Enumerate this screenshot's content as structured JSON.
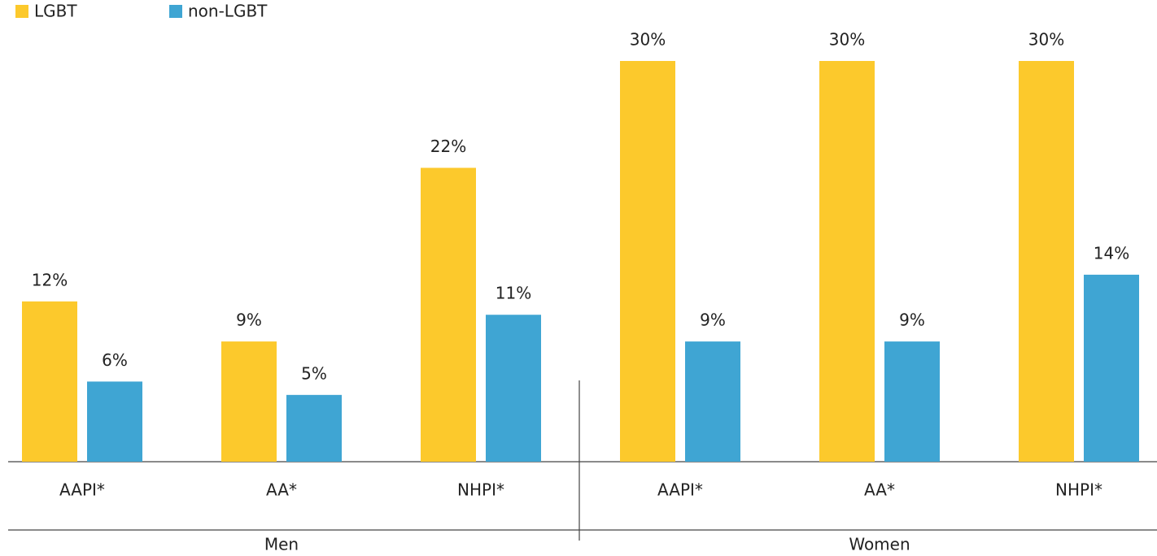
{
  "chart_data": {
    "type": "bar",
    "categories": [
      "AAPI*",
      "AA*",
      "NHPI*",
      "AAPI*",
      "AA*",
      "NHPI*"
    ],
    "groups": [
      "Men",
      "Women"
    ],
    "series": [
      {
        "name": "LGBT",
        "color": "#fcc92c",
        "values": [
          12,
          9,
          22,
          30,
          30,
          30
        ],
        "value_labels": [
          "12%",
          "9%",
          "22%",
          "30%",
          "30%",
          "30%"
        ]
      },
      {
        "name": "non-LGBT",
        "color": "#3fa5d3",
        "values": [
          6,
          5,
          11,
          9,
          9,
          14
        ],
        "value_labels": [
          "6%",
          "5%",
          "11%",
          "9%",
          "9%",
          "14%"
        ]
      }
    ],
    "ylim": [
      0,
      30
    ],
    "legend": "top-left"
  }
}
